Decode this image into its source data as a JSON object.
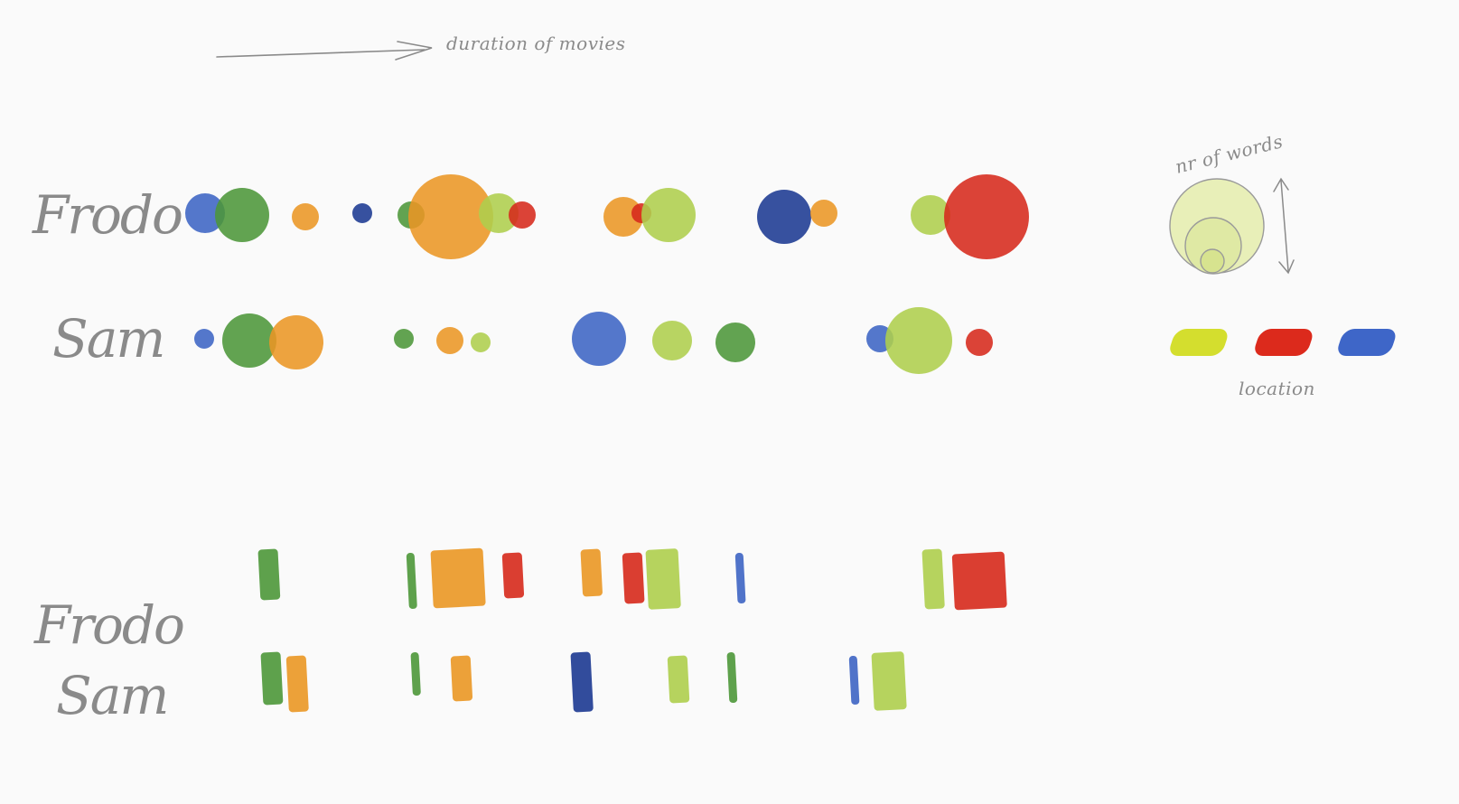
{
  "annotations": {
    "axis_note": "duration of movies",
    "size_note": "nr of words",
    "color_note": "location"
  },
  "characters": [
    "Frodo",
    "Sam"
  ],
  "palette": {
    "light_green": "#b3d44f",
    "dark_green": "#4f9a3a",
    "orange": "#f09a25",
    "red": "#dc2a1c",
    "blue": "#3e66c8",
    "dark_blue": "#1d3a95",
    "yellow": "#d4de2e",
    "ink": "#8a8a8a"
  },
  "legend": {
    "location_swatches": [
      "yellow",
      "red",
      "blue"
    ],
    "size_rings": 3
  },
  "bubble_chart": {
    "Frodo": [
      {
        "color": "blue",
        "size": "s"
      },
      {
        "color": "dark_green",
        "size": "m"
      },
      {
        "color": "orange",
        "size": "xs"
      },
      {
        "color": "dark_blue",
        "size": "xxs"
      },
      {
        "color": "dark_green",
        "size": "xs"
      },
      {
        "color": "orange",
        "size": "xl"
      },
      {
        "color": "light_green",
        "size": "s"
      },
      {
        "color": "red",
        "size": "xs"
      },
      {
        "color": "orange",
        "size": "s"
      },
      {
        "color": "red",
        "size": "xxs"
      },
      {
        "color": "light_green",
        "size": "m"
      },
      {
        "color": "dark_blue",
        "size": "m"
      },
      {
        "color": "orange",
        "size": "xs"
      },
      {
        "color": "light_green",
        "size": "s"
      },
      {
        "color": "red",
        "size": "xl"
      }
    ],
    "Sam": [
      {
        "color": "blue",
        "size": "xxs"
      },
      {
        "color": "dark_green",
        "size": "m"
      },
      {
        "color": "orange",
        "size": "m"
      },
      {
        "color": "dark_green",
        "size": "xxs"
      },
      {
        "color": "orange",
        "size": "xs"
      },
      {
        "color": "light_green",
        "size": "xxs"
      },
      {
        "color": "blue",
        "size": "m"
      },
      {
        "color": "light_green",
        "size": "s"
      },
      {
        "color": "dark_green",
        "size": "s"
      },
      {
        "color": "blue",
        "size": "xs"
      },
      {
        "color": "light_green",
        "size": "l"
      },
      {
        "color": "red",
        "size": "xs"
      }
    ]
  },
  "bar_chart": {
    "Frodo": [
      {
        "color": "dark_green",
        "duration": "s"
      },
      {
        "color": "dark_green",
        "duration": "xs"
      },
      {
        "color": "orange",
        "duration": "l"
      },
      {
        "color": "red",
        "duration": "s"
      },
      {
        "color": "orange",
        "duration": "s"
      },
      {
        "color": "red",
        "duration": "s"
      },
      {
        "color": "light_green",
        "duration": "m"
      },
      {
        "color": "blue",
        "duration": "xs"
      },
      {
        "color": "light_green",
        "duration": "s"
      },
      {
        "color": "red",
        "duration": "l"
      }
    ],
    "Sam": [
      {
        "color": "dark_green",
        "duration": "s"
      },
      {
        "color": "orange",
        "duration": "s"
      },
      {
        "color": "dark_green",
        "duration": "xs"
      },
      {
        "color": "orange",
        "duration": "s"
      },
      {
        "color": "dark_blue",
        "duration": "s"
      },
      {
        "color": "light_green",
        "duration": "s"
      },
      {
        "color": "dark_green",
        "duration": "xs"
      },
      {
        "color": "blue",
        "duration": "xs"
      },
      {
        "color": "light_green",
        "duration": "m"
      }
    ]
  }
}
